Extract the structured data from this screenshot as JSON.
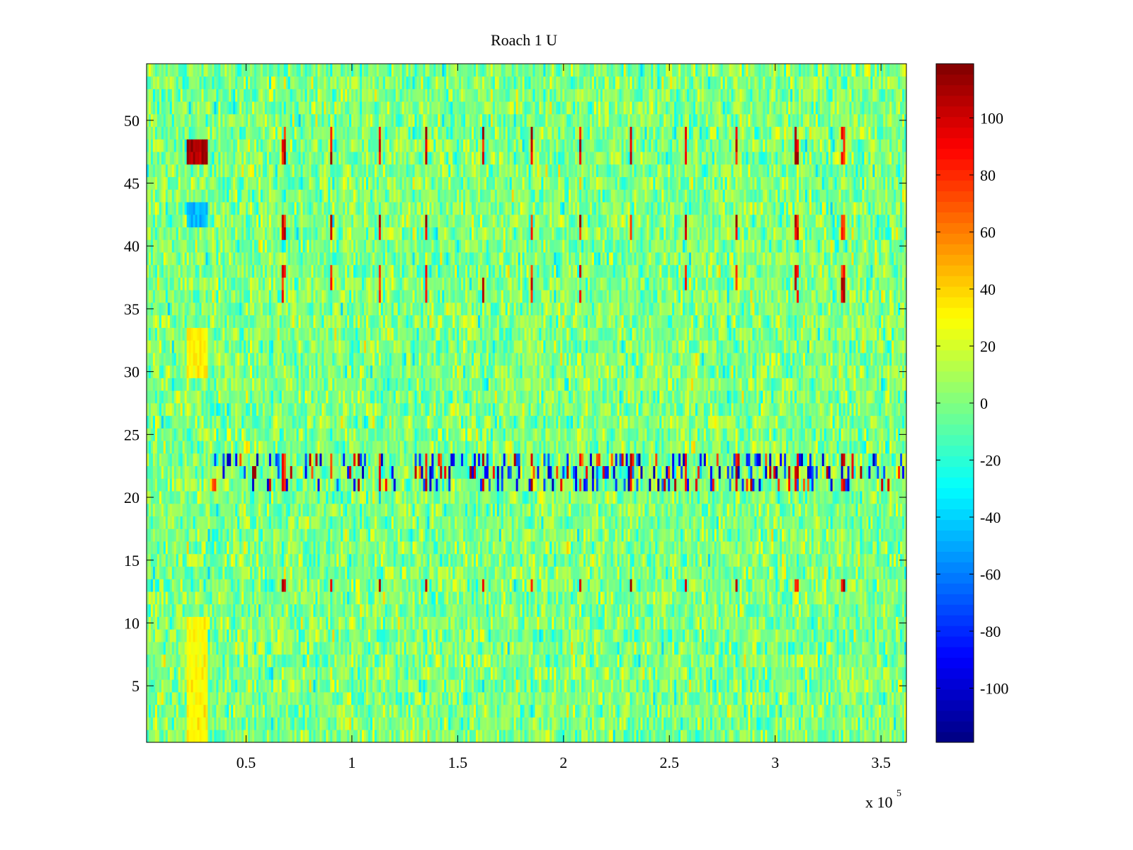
{
  "chart_data": {
    "type": "heatmap",
    "title": "Roach 1 U",
    "xlabel": "",
    "ylabel": "",
    "x_exponent_label": "x 10",
    "x_exponent_power": "5",
    "x_multiplier": 100000,
    "xlim": [
      3000,
      362000
    ],
    "ylim": [
      0.5,
      54.5
    ],
    "x_ticks": [
      0.5,
      1,
      1.5,
      2,
      2.5,
      3,
      3.5
    ],
    "x_tick_labels": [
      "0.5",
      "1",
      "1.5",
      "2",
      "2.5",
      "3",
      "3.5"
    ],
    "y_ticks": [
      5,
      10,
      15,
      20,
      25,
      30,
      35,
      40,
      45,
      50
    ],
    "y_tick_labels": [
      "5",
      "10",
      "15",
      "20",
      "25",
      "30",
      "35",
      "40",
      "45",
      "50"
    ],
    "rows": 54,
    "columns": 360,
    "colormap": "jet",
    "clim": [
      -119,
      119
    ],
    "colorbar": {
      "ticks": [
        -100,
        -80,
        -60,
        -40,
        -20,
        0,
        20,
        40,
        60,
        80,
        100
      ],
      "tick_labels": [
        "-100",
        "-80",
        "-60",
        "-40",
        "-20",
        "0",
        "20",
        "40",
        "60",
        "80",
        "100"
      ],
      "location": "right"
    },
    "background_level": 0,
    "noise_amplitude": 14,
    "spike_columns_x": [
      68000,
      90000,
      113000,
      135000,
      162000,
      185000,
      208000,
      232000,
      258000,
      282000,
      310000,
      332000
    ],
    "spike_rows": [
      13,
      21,
      22,
      23,
      36,
      37,
      38,
      41,
      42,
      47,
      48,
      49
    ],
    "high_activity_rows": [
      21,
      22,
      23
    ],
    "features": [
      {
        "x_range": [
          22000,
          32000
        ],
        "rows": [
          47,
          48
        ],
        "value": 110
      },
      {
        "x_range": [
          22000,
          32000
        ],
        "rows": [
          42,
          43
        ],
        "value": -45
      },
      {
        "x_range": [
          22000,
          32000
        ],
        "rows": [
          1,
          10
        ],
        "value": 30
      },
      {
        "x_range": [
          22000,
          32000
        ],
        "rows": [
          30,
          33
        ],
        "value": 32
      }
    ]
  }
}
